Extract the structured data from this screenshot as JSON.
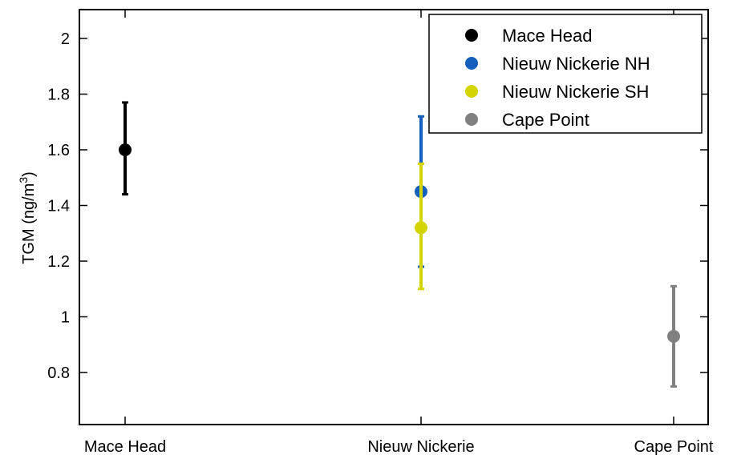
{
  "chart_data": {
    "type": "scatter",
    "title": "",
    "xlabel": "",
    "ylabel": "TGM (ng/m",
    "ylabel_superscript": "3",
    "ylabel_suffix": ")",
    "categories": [
      "Mace Head",
      "Nieuw Nickerie",
      "Cape Point"
    ],
    "ylim": [
      0.6,
      2.1
    ],
    "yticks": [
      0.8,
      1.0,
      1.2,
      1.4,
      1.6,
      1.8,
      2.0
    ],
    "ytick_labels": [
      "0.8",
      "1",
      "1.2",
      "1.4",
      "1.6",
      "1.8",
      "2"
    ],
    "grid": false,
    "legend_position": "top-right",
    "series": [
      {
        "name": "Mace Head",
        "color": "#000000",
        "category": "Mace Head",
        "value": 1.6,
        "err_low": 1.44,
        "err_high": 1.77
      },
      {
        "name": "Nieuw Nickerie NH",
        "color": "#1560bd",
        "category": "Nieuw Nickerie",
        "value": 1.45,
        "err_low": 1.18,
        "err_high": 1.72
      },
      {
        "name": "Nieuw Nickerie SH",
        "color": "#d4d400",
        "category": "Nieuw Nickerie",
        "value": 1.32,
        "err_low": 1.1,
        "err_high": 1.55
      },
      {
        "name": "Cape Point",
        "color": "#808080",
        "category": "Cape Point",
        "value": 0.93,
        "err_low": 0.75,
        "err_high": 1.11
      }
    ]
  }
}
